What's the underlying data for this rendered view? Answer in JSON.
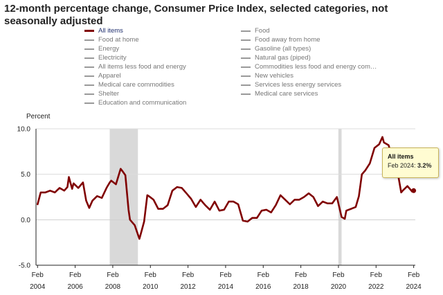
{
  "chart_data": {
    "type": "line",
    "title": "12-month percentage change, Consumer Price Index, selected categories, not seasonally adjusted",
    "ylabel": "Percent",
    "ylim": [
      -5.0,
      10.0
    ],
    "yticks": [
      "10.0",
      "5.0",
      "0.0",
      "-5.0"
    ],
    "ytick_values": [
      10,
      5,
      0,
      -5
    ],
    "xticks": [
      {
        "month": "Feb",
        "year": "2004",
        "t": 2004.083
      },
      {
        "month": "Feb",
        "year": "2006",
        "t": 2006.083
      },
      {
        "month": "Feb",
        "year": "2008",
        "t": 2008.083
      },
      {
        "month": "Feb",
        "year": "2010",
        "t": 2010.083
      },
      {
        "month": "Feb",
        "year": "2012",
        "t": 2012.083
      },
      {
        "month": "Feb",
        "year": "2014",
        "t": 2014.083
      },
      {
        "month": "Feb",
        "year": "2016",
        "t": 2016.083
      },
      {
        "month": "Feb",
        "year": "2018",
        "t": 2018.083
      },
      {
        "month": "Feb",
        "year": "2020",
        "t": 2020.083
      },
      {
        "month": "Feb",
        "year": "2022",
        "t": 2022.083
      },
      {
        "month": "Feb",
        "year": "2024",
        "t": 2024.083
      }
    ],
    "xlim": [
      2004.0,
      2024.17
    ],
    "recessions": [
      [
        2007.92,
        2009.42
      ],
      [
        2020.08,
        2020.25
      ]
    ],
    "series": [
      {
        "name": "All items",
        "color": "#800000",
        "x": [
          2004.083,
          2004.25,
          2004.5,
          2004.75,
          2005.0,
          2005.25,
          2005.5,
          2005.67,
          2005.75,
          2005.92,
          2006.0,
          2006.25,
          2006.5,
          2006.67,
          2006.83,
          2007.0,
          2007.25,
          2007.5,
          2007.75,
          2007.92,
          2008.0,
          2008.25,
          2008.5,
          2008.58,
          2008.75,
          2008.92,
          2009.0,
          2009.25,
          2009.5,
          2009.58,
          2009.75,
          2009.92,
          2010.0,
          2010.25,
          2010.5,
          2010.75,
          2011.0,
          2011.25,
          2011.5,
          2011.75,
          2012.0,
          2012.25,
          2012.5,
          2012.75,
          2013.0,
          2013.25,
          2013.5,
          2013.75,
          2014.0,
          2014.25,
          2014.5,
          2014.75,
          2015.0,
          2015.25,
          2015.5,
          2015.75,
          2016.0,
          2016.25,
          2016.5,
          2016.75,
          2017.0,
          2017.25,
          2017.5,
          2017.75,
          2018.0,
          2018.25,
          2018.5,
          2018.75,
          2019.0,
          2019.25,
          2019.5,
          2019.75,
          2020.0,
          2020.25,
          2020.42,
          2020.5,
          2020.75,
          2021.0,
          2021.17,
          2021.33,
          2021.5,
          2021.75,
          2022.0,
          2022.25,
          2022.42,
          2022.5,
          2022.75,
          2023.0,
          2023.25,
          2023.42,
          2023.5,
          2023.75,
          2024.0,
          2024.083
        ],
        "y": [
          1.7,
          3.0,
          3.0,
          3.2,
          3.0,
          3.5,
          3.2,
          3.6,
          4.7,
          3.4,
          4.0,
          3.5,
          4.1,
          2.1,
          1.3,
          2.1,
          2.6,
          2.4,
          3.5,
          4.1,
          4.3,
          3.9,
          5.6,
          5.4,
          4.9,
          1.1,
          0.0,
          -0.6,
          -2.1,
          -1.5,
          -0.2,
          2.7,
          2.6,
          2.2,
          1.2,
          1.2,
          1.6,
          3.2,
          3.6,
          3.5,
          2.9,
          2.3,
          1.4,
          2.2,
          1.6,
          1.1,
          2.0,
          1.0,
          1.1,
          2.0,
          2.0,
          1.7,
          -0.1,
          -0.2,
          0.2,
          0.2,
          1.0,
          1.1,
          0.8,
          1.6,
          2.7,
          2.2,
          1.7,
          2.2,
          2.2,
          2.5,
          2.9,
          2.5,
          1.5,
          2.0,
          1.8,
          1.8,
          2.5,
          0.3,
          0.1,
          1.0,
          1.2,
          1.4,
          2.6,
          5.0,
          5.4,
          6.2,
          7.9,
          8.3,
          9.1,
          8.5,
          8.2,
          6.4,
          5.0,
          3.0,
          3.2,
          3.7,
          3.1,
          3.2
        ]
      }
    ]
  },
  "legend": {
    "items": [
      {
        "label": "All items",
        "active": true
      },
      {
        "label": "Food",
        "active": false
      },
      {
        "label": "Food at home",
        "active": false
      },
      {
        "label": "Food away from home",
        "active": false
      },
      {
        "label": "Energy",
        "active": false
      },
      {
        "label": "Gasoline (all types)",
        "active": false
      },
      {
        "label": "Electricity",
        "active": false
      },
      {
        "label": "Natural gas (piped)",
        "active": false
      },
      {
        "label": "All items less food and energy",
        "active": false
      },
      {
        "label": "Commodities less food and energy com…",
        "active": false
      },
      {
        "label": "Apparel",
        "active": false
      },
      {
        "label": "New vehicles",
        "active": false
      },
      {
        "label": "Medical care commodities",
        "active": false
      },
      {
        "label": "Services less energy services",
        "active": false
      },
      {
        "label": "Shelter",
        "active": false
      },
      {
        "label": "Medical care services",
        "active": false
      },
      {
        "label": "Education and communication",
        "active": false
      }
    ]
  },
  "tooltip": {
    "title": "All items",
    "label": "Feb 2024:",
    "value": "3.2%"
  }
}
